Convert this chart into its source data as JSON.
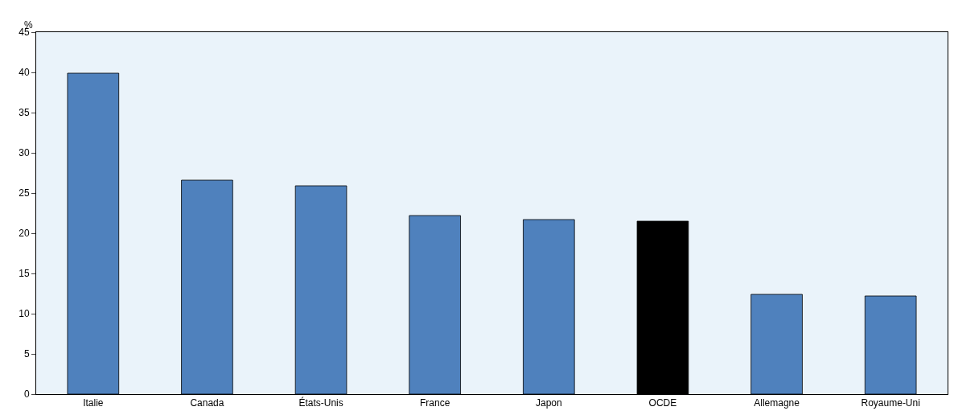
{
  "chart_data": {
    "type": "bar",
    "ylabel": "%",
    "categories": [
      "Italie",
      "Canada",
      "États-Unis",
      "France",
      "Japon",
      "OCDE",
      "Allemagne",
      "Royaume-Uni"
    ],
    "values": [
      39.9,
      26.6,
      25.9,
      22.2,
      21.7,
      21.5,
      12.4,
      12.2
    ],
    "colors": [
      "#4f81bd",
      "#4f81bd",
      "#4f81bd",
      "#4f81bd",
      "#4f81bd",
      "#000000",
      "#4f81bd",
      "#4f81bd"
    ],
    "ylim": [
      0,
      45
    ],
    "yticks": [
      0,
      5,
      10,
      15,
      20,
      25,
      30,
      35,
      40,
      45
    ],
    "grid": false
  }
}
